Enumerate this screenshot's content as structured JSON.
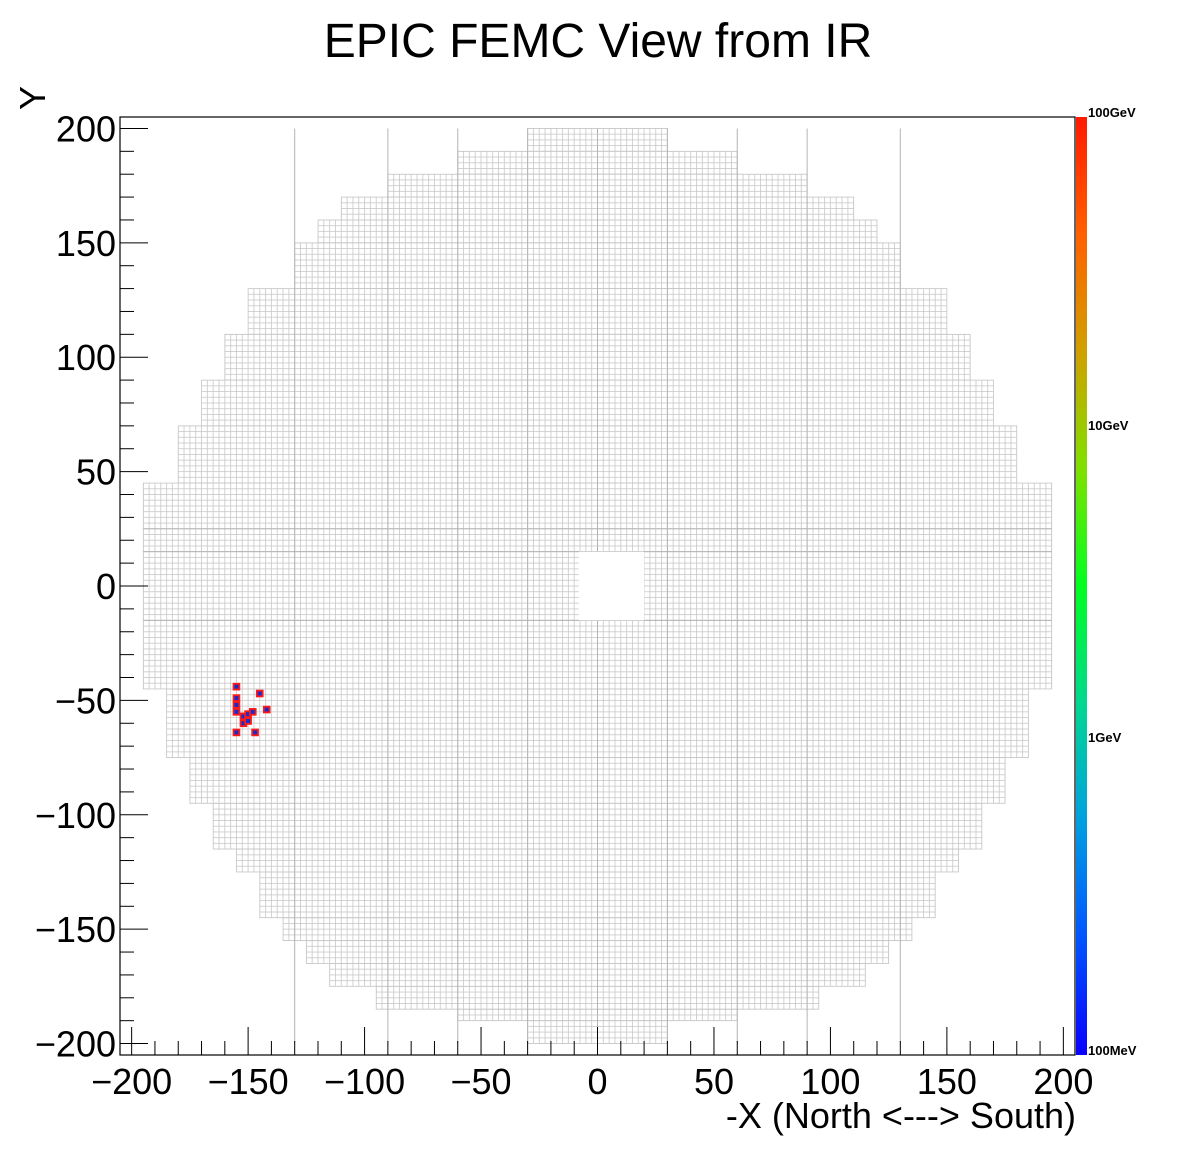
{
  "chart_data": {
    "type": "heatmap",
    "title": "EPIC FEMC View from IR",
    "xlabel": "-X (North <---> South)",
    "ylabel": "Y",
    "xlim": [
      -205,
      205
    ],
    "ylim": [
      -205,
      205
    ],
    "x_ticks": [
      -200,
      -150,
      -100,
      -50,
      0,
      50,
      100,
      150,
      200
    ],
    "y_ticks": [
      -200,
      -150,
      -100,
      -50,
      0,
      50,
      100,
      150,
      200
    ],
    "x_tick_labels": [
      "−200",
      "−150",
      "−100",
      "−50",
      "0",
      "50",
      "100",
      "150",
      "200"
    ],
    "y_tick_labels": [
      "−200",
      "−150",
      "−100",
      "−50",
      "0",
      "50",
      "100",
      "150",
      "200"
    ],
    "detector": {
      "shape": "circular tower grid",
      "tower_pitch": 2.5,
      "outer_rows": [
        {
          "y": [
            190,
            200
          ],
          "x": [
            -30,
            30
          ]
        },
        {
          "y": [
            180,
            190
          ],
          "x": [
            -60,
            60
          ]
        },
        {
          "y": [
            170,
            180
          ],
          "x": [
            -90,
            90
          ]
        },
        {
          "y": [
            160,
            170
          ],
          "x": [
            -110,
            110
          ]
        },
        {
          "y": [
            150,
            160
          ],
          "x": [
            -120,
            120
          ]
        },
        {
          "y": [
            130,
            150
          ],
          "x": [
            -130,
            130
          ]
        },
        {
          "y": [
            110,
            130
          ],
          "x": [
            -150,
            150
          ]
        },
        {
          "y": [
            90,
            110
          ],
          "x": [
            -160,
            160
          ]
        },
        {
          "y": [
            70,
            90
          ],
          "x": [
            -170,
            170
          ]
        },
        {
          "y": [
            45,
            70
          ],
          "x": [
            -180,
            180
          ]
        },
        {
          "y": [
            -45,
            45
          ],
          "x": [
            -195,
            195
          ]
        },
        {
          "y": [
            -75,
            -45
          ],
          "x": [
            -185,
            185
          ]
        },
        {
          "y": [
            -95,
            -75
          ],
          "x": [
            -175,
            175
          ]
        },
        {
          "y": [
            -115,
            -95
          ],
          "x": [
            -165,
            165
          ]
        },
        {
          "y": [
            -125,
            -115
          ],
          "x": [
            -155,
            155
          ]
        },
        {
          "y": [
            -145,
            -125
          ],
          "x": [
            -145,
            145
          ]
        },
        {
          "y": [
            -155,
            -145
          ],
          "x": [
            -135,
            135
          ]
        },
        {
          "y": [
            -165,
            -155
          ],
          "x": [
            -125,
            125
          ]
        },
        {
          "y": [
            -175,
            -165
          ],
          "x": [
            -115,
            115
          ]
        },
        {
          "y": [
            -185,
            -175
          ],
          "x": [
            -95,
            95
          ]
        },
        {
          "y": [
            -190,
            -185
          ],
          "x": [
            -60,
            60
          ]
        },
        {
          "y": [
            -200,
            -190
          ],
          "x": [
            -30,
            30
          ]
        }
      ],
      "beam_hole": {
        "x": [
          -8,
          20
        ],
        "y": [
          -15,
          15
        ]
      },
      "grid_color": "#c8c8c8"
    },
    "hits": [
      {
        "x": -155,
        "y": -44
      },
      {
        "x": -155,
        "y": -49
      },
      {
        "x": -155,
        "y": -52
      },
      {
        "x": -155,
        "y": -55
      },
      {
        "x": -155,
        "y": -64
      },
      {
        "x": -152,
        "y": -57
      },
      {
        "x": -152,
        "y": -60
      },
      {
        "x": -150,
        "y": -56
      },
      {
        "x": -150,
        "y": -59
      },
      {
        "x": -148,
        "y": -55
      },
      {
        "x": -147,
        "y": -64
      },
      {
        "x": -145,
        "y": -47
      },
      {
        "x": -142,
        "y": -54
      }
    ],
    "hit_colors": {
      "fill": "#1a2cc8",
      "border": "#ff1a1a"
    },
    "color_scale": {
      "type": "log",
      "labels": [
        "100GeV",
        "10GeV",
        "1GeV",
        "100MeV"
      ],
      "stops": [
        "#0a00ff",
        "#0055ff",
        "#00a0e0",
        "#00d890",
        "#00ff20",
        "#80e000",
        "#d0a000",
        "#ff6000",
        "#ff1a00"
      ]
    },
    "grid": false,
    "legend": "right colorbar"
  }
}
